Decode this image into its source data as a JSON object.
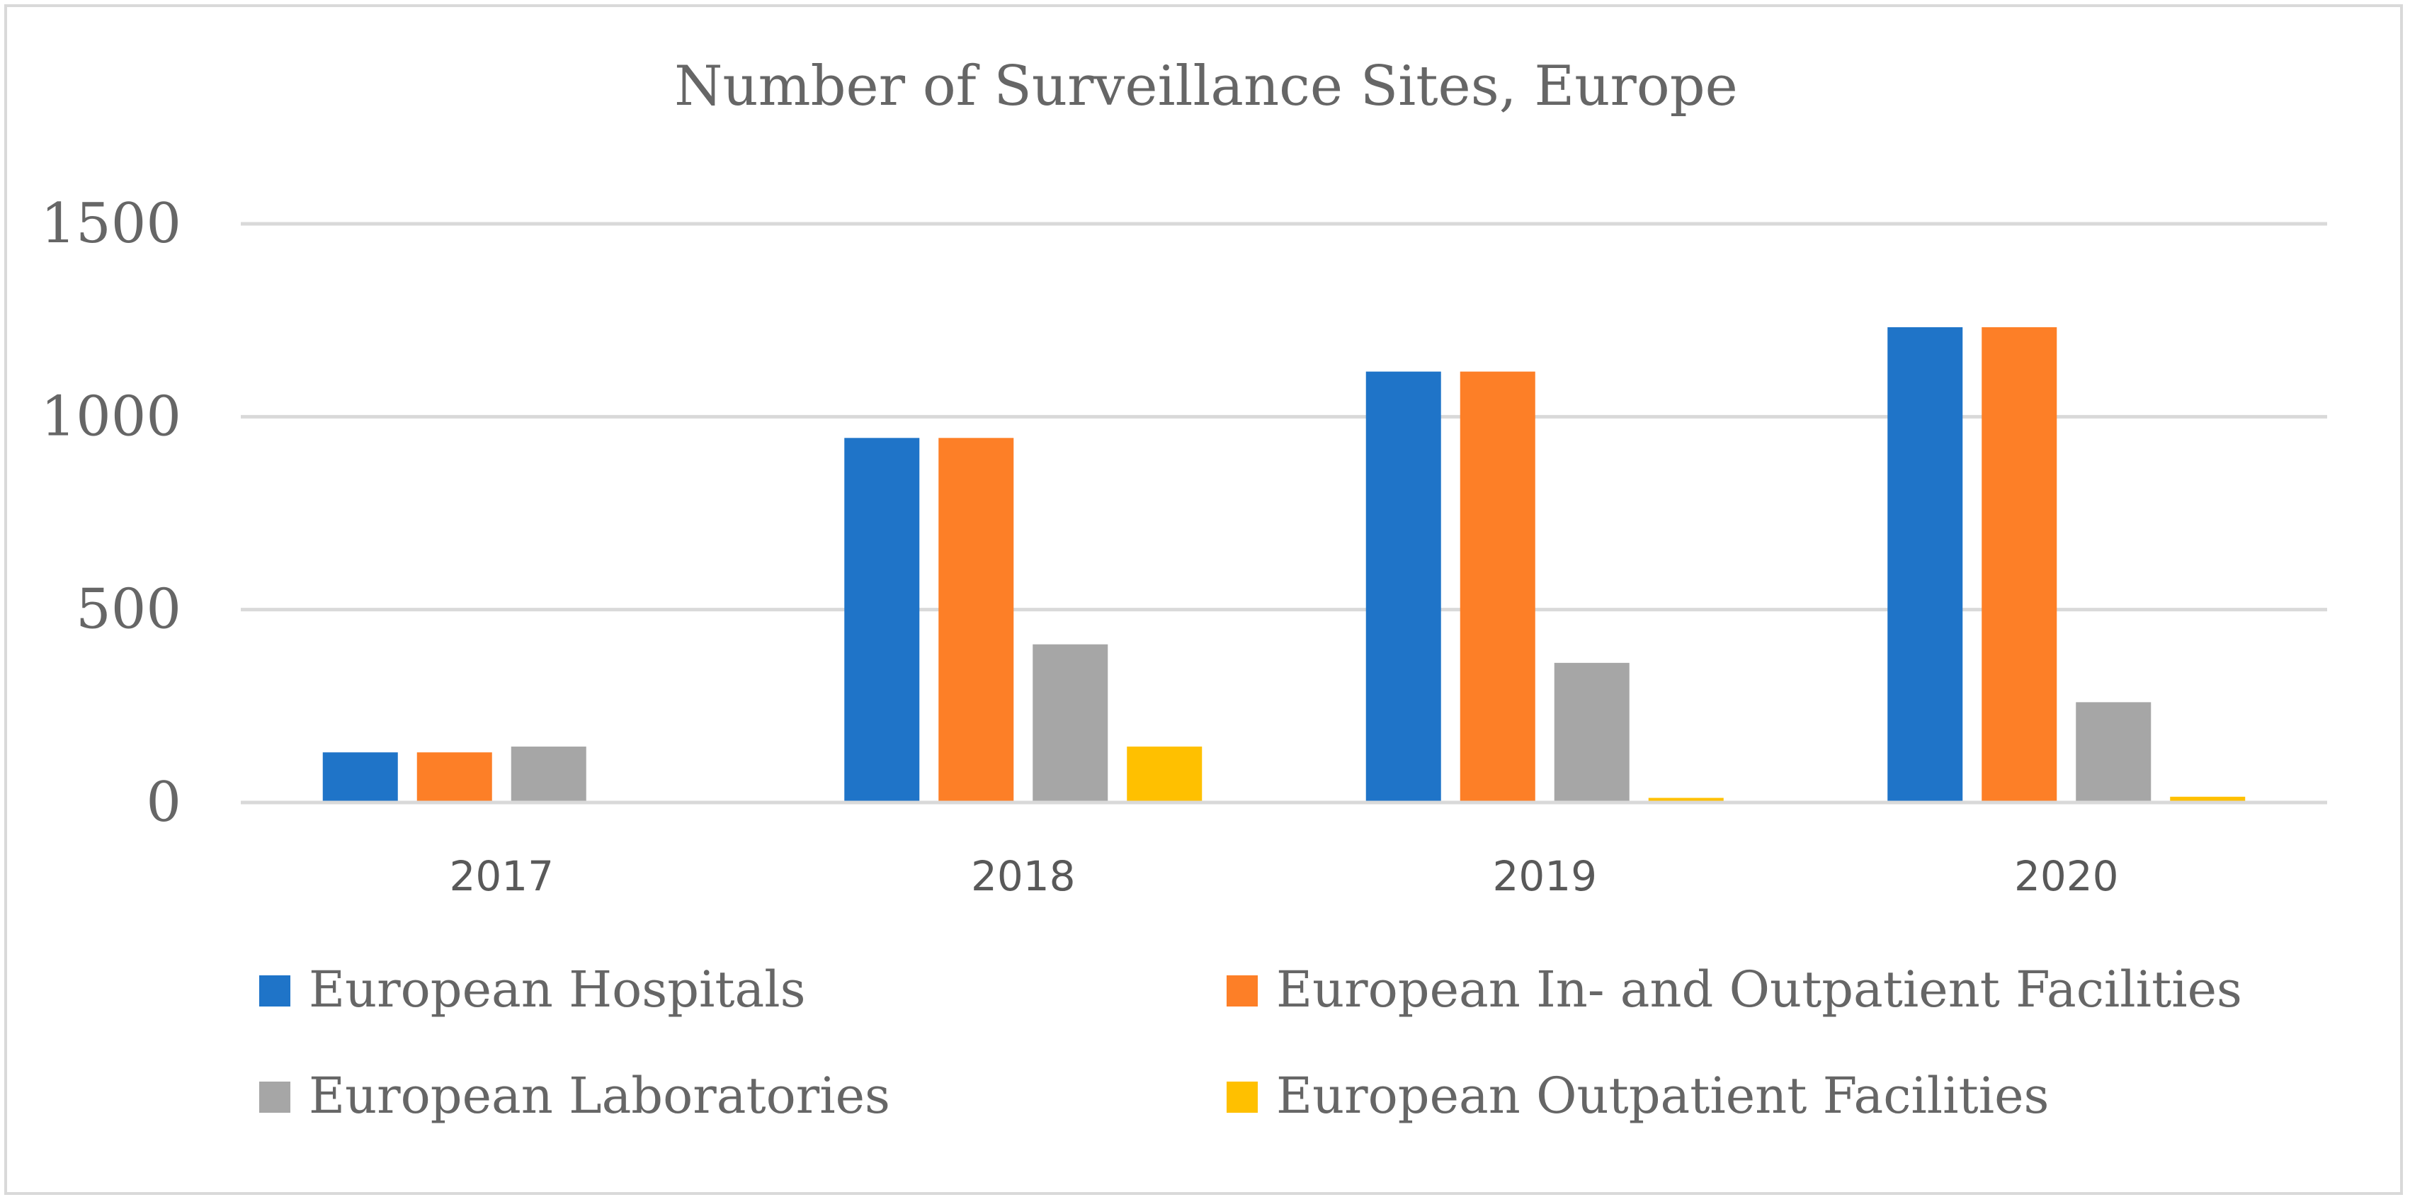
{
  "chart_data": {
    "type": "bar",
    "title": "Number of Surveillance Sites, Europe",
    "xlabel": "",
    "ylabel": "",
    "categories": [
      "2017",
      "2018",
      "2019",
      "2020"
    ],
    "ylim": [
      0,
      1500
    ],
    "yticks": [
      0,
      500,
      1000,
      1500
    ],
    "grid": true,
    "legend_position": "bottom",
    "series": [
      {
        "name": "European Hospitals",
        "color": "#1f74c8",
        "values": [
          130,
          945,
          1117,
          1232
        ]
      },
      {
        "name": "European In- and Outpatient Facilities",
        "color": "#fd7f27",
        "values": [
          130,
          945,
          1117,
          1232
        ]
      },
      {
        "name": "European Laboratories",
        "color": "#a6a6a6",
        "values": [
          145,
          410,
          362,
          260
        ]
      },
      {
        "name": "European Outpatient Facilities",
        "color": "#ffc000",
        "values": [
          0,
          145,
          12,
          15
        ]
      }
    ]
  }
}
